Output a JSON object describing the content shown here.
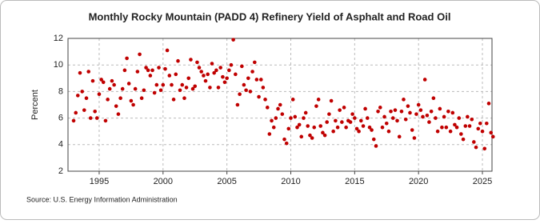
{
  "chart_data": {
    "type": "scatter",
    "title": "Monthly Rocky Mountain (PADD 4) Refinery Yield of Asphalt and Road Oil",
    "y_label": "Percent",
    "source": "Source: U.S. Energy Information Administration",
    "xlim": [
      1992.56,
      2025.75
    ],
    "ylim": [
      2,
      12
    ],
    "xticks": [
      1995,
      2000,
      2005,
      2010,
      2015,
      2020,
      2025
    ],
    "yticks": [
      2,
      4,
      6,
      8,
      10,
      12
    ],
    "grid": true,
    "series": [
      {
        "name": "Refinery Yield",
        "color": "#c00000",
        "x": [
          1993,
          1993.17,
          1993.33,
          1993.5,
          1993.67,
          1993.83,
          1994,
          1994.17,
          1994.33,
          1994.5,
          1994.67,
          1994.83,
          1995,
          1995.17,
          1995.33,
          1995.5,
          1995.67,
          1995.83,
          1996,
          1996.17,
          1996.33,
          1996.5,
          1996.67,
          1996.83,
          1997,
          1997.17,
          1997.33,
          1997.5,
          1997.67,
          1997.83,
          1998,
          1998.17,
          1998.33,
          1998.5,
          1998.67,
          1998.83,
          1999,
          1999.17,
          1999.33,
          1999.5,
          1999.67,
          1999.83,
          2000,
          2000.17,
          2000.33,
          2000.5,
          2000.67,
          2000.83,
          2001,
          2001.17,
          2001.33,
          2001.5,
          2001.67,
          2001.83,
          2002,
          2002.17,
          2002.33,
          2002.5,
          2002.67,
          2002.83,
          2003,
          2003.17,
          2003.33,
          2003.5,
          2003.67,
          2003.83,
          2004,
          2004.17,
          2004.33,
          2004.5,
          2004.67,
          2004.83,
          2005,
          2005.17,
          2005.33,
          2005.5,
          2005.67,
          2005.83,
          2006,
          2006.17,
          2006.33,
          2006.5,
          2006.67,
          2006.83,
          2007,
          2007.17,
          2007.33,
          2007.5,
          2007.67,
          2007.83,
          2008,
          2008.17,
          2008.33,
          2008.5,
          2008.67,
          2008.83,
          2009,
          2009.17,
          2009.33,
          2009.5,
          2009.67,
          2009.83,
          2010,
          2010.17,
          2010.33,
          2010.5,
          2010.67,
          2010.83,
          2011,
          2011.17,
          2011.33,
          2011.5,
          2011.67,
          2011.83,
          2012,
          2012.17,
          2012.33,
          2012.5,
          2012.67,
          2012.83,
          2013,
          2013.17,
          2013.33,
          2013.5,
          2013.67,
          2013.83,
          2014,
          2014.17,
          2014.33,
          2014.5,
          2014.67,
          2014.83,
          2015,
          2015.17,
          2015.33,
          2015.5,
          2015.67,
          2015.83,
          2016,
          2016.17,
          2016.33,
          2016.5,
          2016.67,
          2016.83,
          2017,
          2017.17,
          2017.33,
          2017.5,
          2017.67,
          2017.83,
          2018,
          2018.17,
          2018.33,
          2018.5,
          2018.67,
          2018.83,
          2019,
          2019.17,
          2019.33,
          2019.5,
          2019.67,
          2019.83,
          2020,
          2020.17,
          2020.33,
          2020.5,
          2020.67,
          2020.83,
          2021,
          2021.17,
          2021.33,
          2021.5,
          2021.67,
          2021.83,
          2022,
          2022.17,
          2022.33,
          2022.5,
          2022.67,
          2022.83,
          2023,
          2023.17,
          2023.33,
          2023.5,
          2023.67,
          2023.83,
          2024,
          2024.17,
          2024.33,
          2024.5,
          2024.67,
          2024.83,
          2025,
          2025.17,
          2025.33,
          2025.5,
          2025.67,
          2025.83
        ],
        "values": [
          5.8,
          6.4,
          7.7,
          9.4,
          8.0,
          6.6,
          7.5,
          9.5,
          6.0,
          8.8,
          6.5,
          6.0,
          7.8,
          8.9,
          8.7,
          5.8,
          7.4,
          8.2,
          8.8,
          8.5,
          6.9,
          6.3,
          7.5,
          8.2,
          9.6,
          10.5,
          8.6,
          7.3,
          7.0,
          8.2,
          9.5,
          10.8,
          7.5,
          8.1,
          9.8,
          9.6,
          9.2,
          9.6,
          7.9,
          8.5,
          9.8,
          8.1,
          8.5,
          9.7,
          11.1,
          9.2,
          8.5,
          7.4,
          9.3,
          10.3,
          8.1,
          8.5,
          7.5,
          8.3,
          9.0,
          10.4,
          8.2,
          8.4,
          10.2,
          9.8,
          9.5,
          9.2,
          8.8,
          9.3,
          8.3,
          10.1,
          9.4,
          9.6,
          8.3,
          9.8,
          9.1,
          8.7,
          9.0,
          9.6,
          10.0,
          11.9,
          9.3,
          7.0,
          7.8,
          9.9,
          8.5,
          8.1,
          9.0,
          8.0,
          9.5,
          10.2,
          8.9,
          7.6,
          8.9,
          8.3,
          7.4,
          6.8,
          4.8,
          5.8,
          5.3,
          6.0,
          6.7,
          7.0,
          6.3,
          4.4,
          4.1,
          5.2,
          6.0,
          7.4,
          6.1,
          5.3,
          5.5,
          4.6,
          6.0,
          6.4,
          5.4,
          4.7,
          4.5,
          5.3,
          6.9,
          7.4,
          5.4,
          4.9,
          4.7,
          5.7,
          6.3,
          7.3,
          5.0,
          5.8,
          5.3,
          6.6,
          5.7,
          6.8,
          5.3,
          5.8,
          5.7,
          6.3,
          6.0,
          5.2,
          5.0,
          5.8,
          5.4,
          6.7,
          6.0,
          5.3,
          5.1,
          4.4,
          3.9,
          6.5,
          6.8,
          5.3,
          6.1,
          5.6,
          5.0,
          6.5,
          6.0,
          6.6,
          5.8,
          4.6,
          6.5,
          7.4,
          5.9,
          6.9,
          6.4,
          5.1,
          4.5,
          6.3,
          7.0,
          6.6,
          6.1,
          8.9,
          6.2,
          5.7,
          6.5,
          7.5,
          6.0,
          5.0,
          6.7,
          5.3,
          6.1,
          5.3,
          6.5,
          5.0,
          6.4,
          5.5,
          5.3,
          6.0,
          4.8,
          4.4,
          5.4,
          6.1,
          5.4,
          5.9,
          4.2,
          3.8,
          5.2,
          5.6,
          5.0,
          3.7,
          5.6,
          7.1,
          4.9,
          4.6
        ]
      }
    ]
  }
}
